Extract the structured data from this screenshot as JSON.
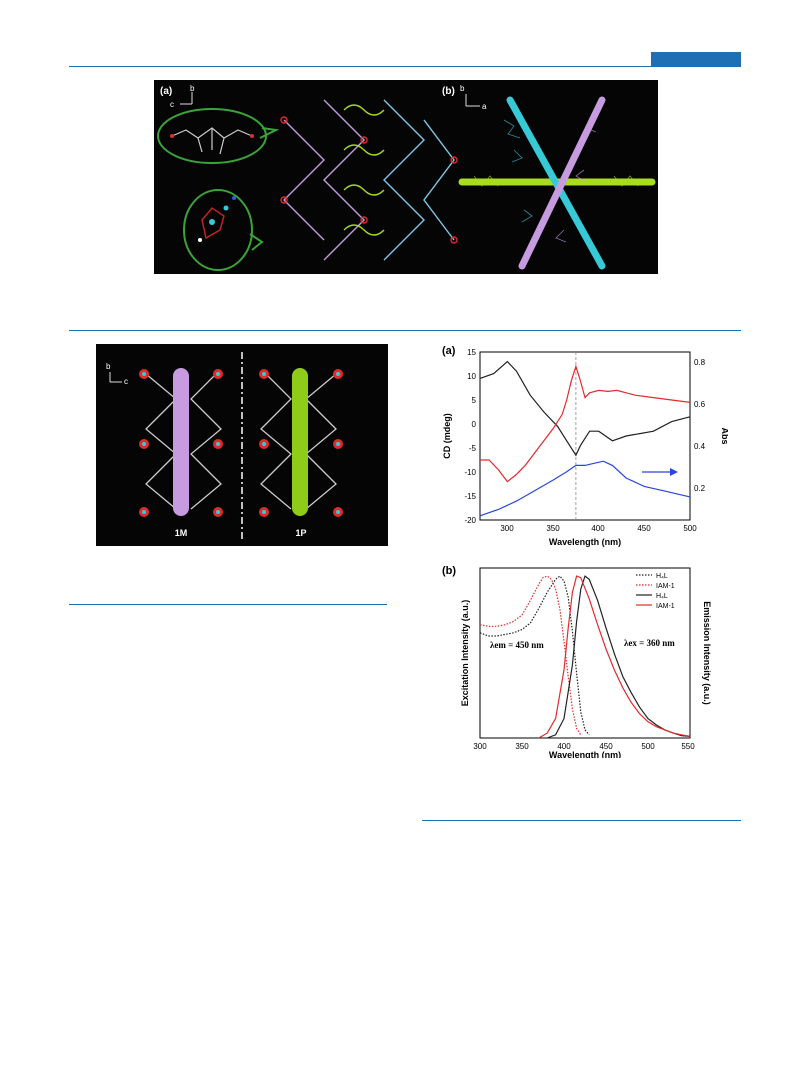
{
  "figure1": {
    "panel_a_label": "(a)",
    "panel_b_label": "(b)",
    "axis_a_1": "b",
    "axis_a_2": "c",
    "axis_b_1": "b",
    "axis_b_2": "a"
  },
  "figure2": {
    "axis_1": "b",
    "axis_2": "c",
    "label_left": "1M",
    "label_right": "1P"
  },
  "colors": {
    "accent": "#1f6fb5",
    "purple": "#c79be0",
    "cyan": "#36c9d6",
    "green": "#a8dc1f",
    "red": "#e02b2b",
    "blue": "#2b44e0"
  },
  "chart_data": [
    {
      "type": "line",
      "panel_label": "(a)",
      "xlabel": "Wavelength (nm)",
      "ylabel": "CD (mdeg)",
      "ylabel_right": "Abs",
      "xlim": [
        270,
        500
      ],
      "ylim": [
        -20,
        15
      ],
      "ylim_right": [
        0.1,
        0.9
      ],
      "x_ticks": [
        "300",
        "350",
        "400",
        "450",
        "500"
      ],
      "y_ticks": [
        "-20",
        "-15",
        "-10",
        "-5",
        "0",
        "5",
        "10",
        "15"
      ],
      "y_ticks_right": [
        "0.2",
        "0.4",
        "0.6",
        "0.8"
      ],
      "dashed_line_x": 375,
      "series": [
        {
          "color": "#222222",
          "axis": "left",
          "x": [
            270,
            285,
            300,
            310,
            325,
            340,
            355,
            365,
            375,
            380,
            390,
            400,
            415,
            430,
            445,
            460,
            480,
            500
          ],
          "y": [
            9.5,
            10.5,
            13,
            11,
            6,
            2.5,
            -0.5,
            -3.5,
            -6.5,
            -4.5,
            -1.5,
            -1.5,
            -3.5,
            -2.5,
            -2,
            -1.5,
            0.5,
            1.5
          ]
        },
        {
          "color": "#e02b2b",
          "axis": "left",
          "x": [
            270,
            280,
            290,
            300,
            310,
            320,
            330,
            340,
            350,
            360,
            365,
            370,
            375,
            380,
            385,
            390,
            400,
            410,
            420,
            430,
            440,
            460,
            480,
            500
          ],
          "y": [
            -7.5,
            -7.5,
            -9.5,
            -12,
            -10.5,
            -8.5,
            -6,
            -3.5,
            -1,
            2,
            5,
            9,
            12,
            9,
            5.5,
            6.5,
            7,
            6.8,
            7,
            6.5,
            6,
            5.5,
            5,
            4.5
          ]
        },
        {
          "color": "#2b44e0",
          "axis": "right",
          "x": [
            270,
            290,
            310,
            330,
            350,
            365,
            375,
            385,
            395,
            405,
            415,
            430,
            450,
            470,
            490,
            500
          ],
          "y": [
            0.12,
            0.15,
            0.19,
            0.24,
            0.29,
            0.33,
            0.36,
            0.36,
            0.37,
            0.38,
            0.36,
            0.3,
            0.26,
            0.24,
            0.22,
            0.21
          ]
        }
      ]
    },
    {
      "type": "line",
      "panel_label": "(b)",
      "xlabel": "Wavelength (nm)",
      "ylabel": "Excitation Intensity (a.u.)",
      "ylabel_right": "Emission Intensity (a.u.)",
      "xlim": [
        300,
        550
      ],
      "ylim": [
        0,
        1.05
      ],
      "x_ticks": [
        "300",
        "350",
        "400",
        "450",
        "500",
        "550"
      ],
      "legend": [
        "H₄L",
        "IAM-1",
        "H₄L",
        "IAM-1"
      ],
      "annotation_left": "λem = 450 nm",
      "annotation_right": "λex = 360 nm",
      "series": [
        {
          "name": "H₄L",
          "style": "dotted",
          "color": "#222222",
          "x": [
            300,
            310,
            320,
            330,
            340,
            350,
            360,
            370,
            380,
            390,
            395,
            400,
            405,
            410,
            415,
            420,
            425,
            430
          ],
          "y": [
            0.65,
            0.63,
            0.63,
            0.64,
            0.65,
            0.67,
            0.71,
            0.8,
            0.9,
            0.98,
            1.0,
            0.97,
            0.87,
            0.66,
            0.4,
            0.16,
            0.05,
            0.02
          ]
        },
        {
          "name": "IAM-1",
          "style": "dotted",
          "color": "#e02b2b",
          "x": [
            300,
            310,
            320,
            330,
            340,
            350,
            360,
            370,
            375,
            380,
            385,
            390,
            395,
            400,
            405,
            410,
            415,
            420
          ],
          "y": [
            0.7,
            0.69,
            0.69,
            0.7,
            0.72,
            0.76,
            0.85,
            0.95,
            0.99,
            1.0,
            0.98,
            0.92,
            0.8,
            0.6,
            0.38,
            0.18,
            0.06,
            0.02
          ]
        },
        {
          "name": "H₄L",
          "style": "solid",
          "color": "#222222",
          "x": [
            380,
            390,
            400,
            410,
            415,
            420,
            425,
            430,
            440,
            450,
            460,
            470,
            480,
            490,
            500,
            510,
            520,
            530,
            540,
            550
          ],
          "y": [
            0.0,
            0.02,
            0.12,
            0.45,
            0.72,
            0.92,
            1.0,
            0.98,
            0.85,
            0.68,
            0.52,
            0.38,
            0.28,
            0.19,
            0.12,
            0.08,
            0.05,
            0.03,
            0.015,
            0.01
          ]
        },
        {
          "name": "IAM-1",
          "style": "solid",
          "color": "#e02b2b",
          "x": [
            370,
            380,
            390,
            400,
            405,
            410,
            415,
            420,
            430,
            440,
            450,
            460,
            470,
            480,
            490,
            500,
            510,
            520,
            530,
            540,
            550
          ],
          "y": [
            0.0,
            0.03,
            0.12,
            0.42,
            0.68,
            0.9,
            1.0,
            0.99,
            0.86,
            0.7,
            0.55,
            0.42,
            0.31,
            0.22,
            0.15,
            0.1,
            0.07,
            0.05,
            0.03,
            0.02,
            0.01
          ]
        }
      ]
    }
  ]
}
